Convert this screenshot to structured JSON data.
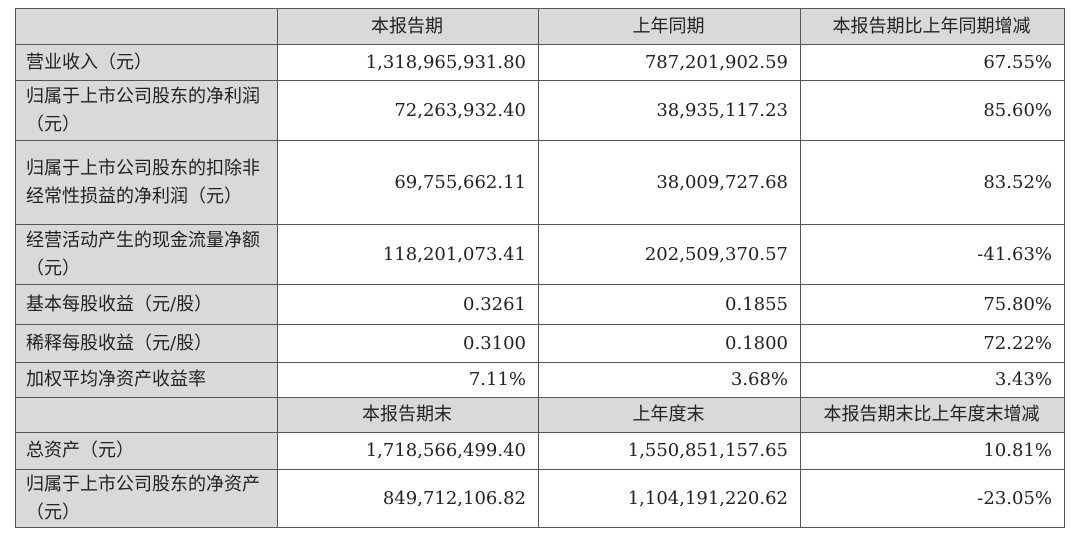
{
  "header1": [
    "",
    "本报告期",
    "上年同期",
    "本报告期比上年同期增减"
  ],
  "rows1": [
    {
      "label": "营业收入（元）",
      "current": "1,318,965,931.80",
      "prior": "787,201,902.59",
      "change": "67.55%"
    },
    {
      "label": "归属于上市公司股东的净利润（元）",
      "current": "72,263,932.40",
      "prior": "38,935,117.23",
      "change": "85.60%"
    },
    {
      "label": "归属于上市公司股东的扣除非经常性损益的净利润（元）",
      "current": "69,755,662.11",
      "prior": "38,009,727.68",
      "change": "83.52%"
    },
    {
      "label": "经营活动产生的现金流量净额（元）",
      "current": "118,201,073.41",
      "prior": "202,509,370.57",
      "change": "-41.63%"
    },
    {
      "label": "基本每股收益（元/股）",
      "current": "0.3261",
      "prior": "0.1855",
      "change": "75.80%"
    },
    {
      "label": "稀释每股收益（元/股）",
      "current": "0.3100",
      "prior": "0.1800",
      "change": "72.22%"
    },
    {
      "label": "加权平均净资产收益率",
      "current": "7.11%",
      "prior": "3.68%",
      "change": "3.43%"
    }
  ],
  "header2": [
    "",
    "本报告期末",
    "上年度末",
    "本报告期末比上年度末增减"
  ],
  "rows2": [
    {
      "label": "总资产（元）",
      "current": "1,718,566,499.40",
      "prior": "1,550,851,157.65",
      "change": "10.81%"
    },
    {
      "label": "归属于上市公司股东的净资产（元）",
      "current": "849,712,106.82",
      "prior": "1,104,191,220.62",
      "change": "-23.05%"
    }
  ]
}
